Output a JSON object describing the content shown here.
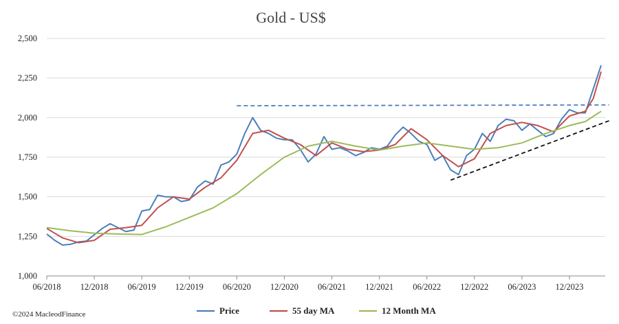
{
  "chart_data": {
    "type": "line",
    "title": "Gold - US$",
    "xlabel": "",
    "ylabel": "",
    "ylim": [
      1000,
      2500
    ],
    "yticks": [
      1000,
      1250,
      1500,
      1750,
      2000,
      2250,
      2500
    ],
    "ytick_labels": [
      "1,000",
      "1,250",
      "1,500",
      "1,750",
      "2,000",
      "2,250",
      "2,500"
    ],
    "xlim": [
      "2018-06",
      "2024-04"
    ],
    "xtick_labels": [
      "06/2018",
      "12/2018",
      "06/2019",
      "12/2019",
      "06/2020",
      "12/2020",
      "06/2021",
      "12/2021",
      "06/2022",
      "12/2022",
      "06/2023",
      "12/2023"
    ],
    "grid": "horizontal",
    "legend_position": "bottom-center",
    "series": [
      {
        "name": "Price",
        "color": "#4a7ebb",
        "points": [
          [
            "2018-06",
            1265
          ],
          [
            "2018-07",
            1225
          ],
          [
            "2018-08",
            1195
          ],
          [
            "2018-09",
            1200
          ],
          [
            "2018-10",
            1215
          ],
          [
            "2018-11",
            1220
          ],
          [
            "2018-12",
            1260
          ],
          [
            "2019-01",
            1300
          ],
          [
            "2019-02",
            1330
          ],
          [
            "2019-03",
            1305
          ],
          [
            "2019-04",
            1280
          ],
          [
            "2019-05",
            1290
          ],
          [
            "2019-06",
            1410
          ],
          [
            "2019-07",
            1420
          ],
          [
            "2019-08",
            1510
          ],
          [
            "2019-09",
            1500
          ],
          [
            "2019-10",
            1500
          ],
          [
            "2019-11",
            1470
          ],
          [
            "2019-12",
            1480
          ],
          [
            "2020-01",
            1560
          ],
          [
            "2020-02",
            1600
          ],
          [
            "2020-03",
            1580
          ],
          [
            "2020-04",
            1700
          ],
          [
            "2020-05",
            1720
          ],
          [
            "2020-06",
            1770
          ],
          [
            "2020-07",
            1900
          ],
          [
            "2020-08",
            2000
          ],
          [
            "2020-09",
            1920
          ],
          [
            "2020-10",
            1900
          ],
          [
            "2020-11",
            1870
          ],
          [
            "2020-12",
            1860
          ],
          [
            "2021-01",
            1860
          ],
          [
            "2021-02",
            1800
          ],
          [
            "2021-03",
            1720
          ],
          [
            "2021-04",
            1770
          ],
          [
            "2021-05",
            1880
          ],
          [
            "2021-06",
            1800
          ],
          [
            "2021-07",
            1810
          ],
          [
            "2021-08",
            1790
          ],
          [
            "2021-09",
            1760
          ],
          [
            "2021-10",
            1780
          ],
          [
            "2021-11",
            1810
          ],
          [
            "2021-12",
            1800
          ],
          [
            "2022-01",
            1820
          ],
          [
            "2022-02",
            1890
          ],
          [
            "2022-03",
            1940
          ],
          [
            "2022-04",
            1900
          ],
          [
            "2022-05",
            1850
          ],
          [
            "2022-06",
            1830
          ],
          [
            "2022-07",
            1730
          ],
          [
            "2022-08",
            1760
          ],
          [
            "2022-09",
            1670
          ],
          [
            "2022-10",
            1640
          ],
          [
            "2022-11",
            1760
          ],
          [
            "2022-12",
            1800
          ],
          [
            "2023-01",
            1900
          ],
          [
            "2023-02",
            1850
          ],
          [
            "2023-03",
            1950
          ],
          [
            "2023-04",
            1990
          ],
          [
            "2023-05",
            1980
          ],
          [
            "2023-06",
            1920
          ],
          [
            "2023-07",
            1960
          ],
          [
            "2023-08",
            1920
          ],
          [
            "2023-09",
            1880
          ],
          [
            "2023-10",
            1900
          ],
          [
            "2023-11",
            1990
          ],
          [
            "2023-12",
            2050
          ],
          [
            "2024-01",
            2030
          ],
          [
            "2024-02",
            2030
          ],
          [
            "2024-03",
            2180
          ],
          [
            "2024-04",
            2330
          ]
        ]
      },
      {
        "name": "55 day MA",
        "color": "#c0504d",
        "points": [
          [
            "2018-06",
            1300
          ],
          [
            "2018-08",
            1240
          ],
          [
            "2018-10",
            1210
          ],
          [
            "2018-12",
            1225
          ],
          [
            "2019-02",
            1295
          ],
          [
            "2019-04",
            1305
          ],
          [
            "2019-06",
            1320
          ],
          [
            "2019-08",
            1430
          ],
          [
            "2019-10",
            1500
          ],
          [
            "2019-12",
            1485
          ],
          [
            "2020-02",
            1560
          ],
          [
            "2020-04",
            1620
          ],
          [
            "2020-06",
            1730
          ],
          [
            "2020-08",
            1900
          ],
          [
            "2020-10",
            1920
          ],
          [
            "2020-12",
            1870
          ],
          [
            "2021-02",
            1830
          ],
          [
            "2021-04",
            1760
          ],
          [
            "2021-06",
            1840
          ],
          [
            "2021-08",
            1800
          ],
          [
            "2021-10",
            1785
          ],
          [
            "2021-12",
            1795
          ],
          [
            "2022-02",
            1830
          ],
          [
            "2022-04",
            1930
          ],
          [
            "2022-06",
            1860
          ],
          [
            "2022-08",
            1760
          ],
          [
            "2022-10",
            1690
          ],
          [
            "2022-12",
            1740
          ],
          [
            "2023-02",
            1900
          ],
          [
            "2023-04",
            1950
          ],
          [
            "2023-06",
            1970
          ],
          [
            "2023-08",
            1950
          ],
          [
            "2023-10",
            1910
          ],
          [
            "2023-12",
            2010
          ],
          [
            "2024-02",
            2040
          ],
          [
            "2024-03",
            2120
          ],
          [
            "2024-04",
            2290
          ]
        ]
      },
      {
        "name": "12 Month MA",
        "color": "#9bbb59",
        "points": [
          [
            "2018-06",
            1305
          ],
          [
            "2018-09",
            1285
          ],
          [
            "2018-12",
            1270
          ],
          [
            "2019-03",
            1265
          ],
          [
            "2019-06",
            1262
          ],
          [
            "2019-09",
            1310
          ],
          [
            "2019-12",
            1370
          ],
          [
            "2020-03",
            1430
          ],
          [
            "2020-06",
            1520
          ],
          [
            "2020-09",
            1640
          ],
          [
            "2020-12",
            1750
          ],
          [
            "2021-03",
            1820
          ],
          [
            "2021-06",
            1850
          ],
          [
            "2021-09",
            1820
          ],
          [
            "2021-12",
            1795
          ],
          [
            "2022-03",
            1820
          ],
          [
            "2022-06",
            1840
          ],
          [
            "2022-09",
            1820
          ],
          [
            "2022-12",
            1800
          ],
          [
            "2023-03",
            1810
          ],
          [
            "2023-06",
            1840
          ],
          [
            "2023-09",
            1900
          ],
          [
            "2023-12",
            1950
          ],
          [
            "2024-02",
            1975
          ],
          [
            "2024-04",
            2040
          ]
        ]
      }
    ],
    "annotations": [
      {
        "kind": "dashed-line",
        "color": "#4a7ebb",
        "from": [
          "2020-06",
          2075
        ],
        "to": [
          "2024-05",
          2080
        ]
      },
      {
        "kind": "dashed-line",
        "color": "#111111",
        "from": [
          "2022-09",
          1605
        ],
        "to": [
          "2024-05",
          1980
        ]
      }
    ]
  },
  "footer": {
    "copyright": "©2024 MacleodFinance"
  }
}
